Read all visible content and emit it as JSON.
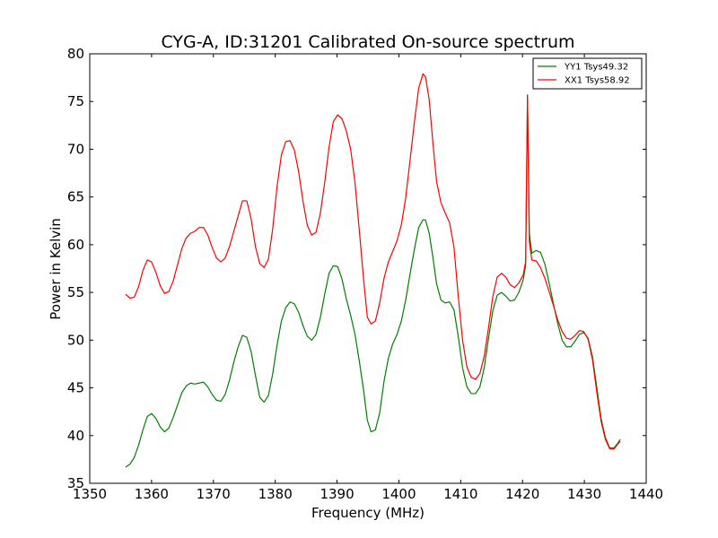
{
  "chart_data": {
    "type": "line",
    "title": "CYG-A, ID:31201 Calibrated On-source spectrum",
    "xlabel": "Frequency (MHz)",
    "ylabel": "Power in Kelvin",
    "xlim": [
      1350,
      1440
    ],
    "ylim": [
      35,
      80
    ],
    "xticks": [
      1350,
      1360,
      1370,
      1380,
      1390,
      1400,
      1410,
      1420,
      1430,
      1440
    ],
    "yticks": [
      35,
      40,
      45,
      50,
      55,
      60,
      65,
      70,
      75,
      80
    ],
    "grid": false,
    "legend_position": "top-right",
    "series": [
      {
        "name": "YY1 Tsys49.32",
        "color": "#008000",
        "points": [
          [
            1355.8,
            36.7
          ],
          [
            1356.5,
            37.0
          ],
          [
            1357.2,
            37.7
          ],
          [
            1357.9,
            39.0
          ],
          [
            1358.6,
            40.6
          ],
          [
            1359.3,
            42.0
          ],
          [
            1360.0,
            42.3
          ],
          [
            1360.7,
            41.8
          ],
          [
            1361.4,
            40.9
          ],
          [
            1362.1,
            40.4
          ],
          [
            1362.8,
            40.8
          ],
          [
            1363.5,
            41.9
          ],
          [
            1364.2,
            43.2
          ],
          [
            1364.9,
            44.5
          ],
          [
            1365.6,
            45.2
          ],
          [
            1366.3,
            45.5
          ],
          [
            1367.0,
            45.4
          ],
          [
            1367.7,
            45.5
          ],
          [
            1368.4,
            45.6
          ],
          [
            1369.1,
            45.1
          ],
          [
            1369.8,
            44.3
          ],
          [
            1370.5,
            43.7
          ],
          [
            1371.2,
            43.6
          ],
          [
            1371.9,
            44.3
          ],
          [
            1372.6,
            45.8
          ],
          [
            1373.3,
            47.7
          ],
          [
            1374.0,
            49.3
          ],
          [
            1374.7,
            50.5
          ],
          [
            1375.4,
            50.3
          ],
          [
            1376.1,
            48.8
          ],
          [
            1376.8,
            46.3
          ],
          [
            1377.5,
            44.0
          ],
          [
            1378.2,
            43.5
          ],
          [
            1378.9,
            44.2
          ],
          [
            1379.6,
            46.5
          ],
          [
            1380.3,
            49.5
          ],
          [
            1381.0,
            52.0
          ],
          [
            1381.7,
            53.4
          ],
          [
            1382.4,
            54.0
          ],
          [
            1383.1,
            53.8
          ],
          [
            1383.8,
            52.9
          ],
          [
            1384.5,
            51.5
          ],
          [
            1385.2,
            50.4
          ],
          [
            1385.9,
            50.0
          ],
          [
            1386.6,
            50.6
          ],
          [
            1387.3,
            52.4
          ],
          [
            1388.0,
            54.8
          ],
          [
            1388.7,
            57.0
          ],
          [
            1389.4,
            57.8
          ],
          [
            1390.1,
            57.7
          ],
          [
            1390.8,
            56.4
          ],
          [
            1391.5,
            54.3
          ],
          [
            1392.2,
            52.6
          ],
          [
            1392.9,
            50.6
          ],
          [
            1393.6,
            47.8
          ],
          [
            1394.3,
            44.7
          ],
          [
            1394.9,
            41.6
          ],
          [
            1395.5,
            40.4
          ],
          [
            1396.2,
            40.6
          ],
          [
            1396.9,
            42.4
          ],
          [
            1397.6,
            45.7
          ],
          [
            1398.3,
            48.1
          ],
          [
            1399.0,
            49.6
          ],
          [
            1399.7,
            50.6
          ],
          [
            1400.4,
            52.0
          ],
          [
            1401.1,
            54.2
          ],
          [
            1401.8,
            56.9
          ],
          [
            1402.5,
            59.5
          ],
          [
            1403.2,
            61.8
          ],
          [
            1403.9,
            62.6
          ],
          [
            1404.3,
            62.6
          ],
          [
            1404.9,
            61.2
          ],
          [
            1405.5,
            58.7
          ],
          [
            1406.1,
            55.9
          ],
          [
            1406.8,
            54.2
          ],
          [
            1407.5,
            53.9
          ],
          [
            1408.2,
            54.0
          ],
          [
            1408.9,
            53.2
          ],
          [
            1409.6,
            50.4
          ],
          [
            1410.3,
            47.1
          ],
          [
            1411.0,
            45.1
          ],
          [
            1411.7,
            44.4
          ],
          [
            1412.4,
            44.4
          ],
          [
            1413.1,
            45.1
          ],
          [
            1413.8,
            47.1
          ],
          [
            1414.5,
            50.2
          ],
          [
            1415.2,
            53.1
          ],
          [
            1415.9,
            54.7
          ],
          [
            1416.6,
            55.0
          ],
          [
            1417.3,
            54.6
          ],
          [
            1418.0,
            54.1
          ],
          [
            1418.7,
            54.2
          ],
          [
            1419.4,
            55.0
          ],
          [
            1420.1,
            56.3
          ],
          [
            1420.5,
            57.8
          ],
          [
            1420.8,
            75.7
          ],
          [
            1421.1,
            61.2
          ],
          [
            1421.5,
            59.1
          ],
          [
            1422.2,
            59.4
          ],
          [
            1422.9,
            59.2
          ],
          [
            1423.6,
            58.0
          ],
          [
            1424.3,
            56.0
          ],
          [
            1425.0,
            53.8
          ],
          [
            1425.7,
            51.7
          ],
          [
            1426.4,
            50.0
          ],
          [
            1427.1,
            49.3
          ],
          [
            1427.8,
            49.3
          ],
          [
            1428.5,
            49.9
          ],
          [
            1429.2,
            50.6
          ],
          [
            1429.9,
            50.8
          ],
          [
            1430.6,
            50.2
          ],
          [
            1431.3,
            48.3
          ],
          [
            1432.0,
            45.1
          ],
          [
            1432.7,
            41.8
          ],
          [
            1433.4,
            39.8
          ],
          [
            1434.1,
            38.7
          ],
          [
            1434.8,
            38.7
          ],
          [
            1435.4,
            39.2
          ],
          [
            1435.8,
            39.6
          ]
        ]
      },
      {
        "name": "XX1 Tsys58.92",
        "color": "#ff0000",
        "points": [
          [
            1355.8,
            54.8
          ],
          [
            1356.5,
            54.4
          ],
          [
            1357.2,
            54.5
          ],
          [
            1357.9,
            55.6
          ],
          [
            1358.6,
            57.3
          ],
          [
            1359.3,
            58.4
          ],
          [
            1360.0,
            58.2
          ],
          [
            1360.7,
            57.1
          ],
          [
            1361.4,
            55.7
          ],
          [
            1362.1,
            54.9
          ],
          [
            1362.8,
            55.1
          ],
          [
            1363.5,
            56.2
          ],
          [
            1364.2,
            57.9
          ],
          [
            1364.9,
            59.6
          ],
          [
            1365.6,
            60.7
          ],
          [
            1366.3,
            61.2
          ],
          [
            1367.0,
            61.4
          ],
          [
            1367.7,
            61.8
          ],
          [
            1368.4,
            61.8
          ],
          [
            1369.1,
            61.0
          ],
          [
            1369.8,
            59.7
          ],
          [
            1370.5,
            58.6
          ],
          [
            1371.2,
            58.2
          ],
          [
            1371.9,
            58.6
          ],
          [
            1372.6,
            59.8
          ],
          [
            1373.3,
            61.4
          ],
          [
            1374.0,
            63.0
          ],
          [
            1374.7,
            64.6
          ],
          [
            1375.4,
            64.6
          ],
          [
            1376.1,
            62.7
          ],
          [
            1376.8,
            59.8
          ],
          [
            1377.5,
            58.0
          ],
          [
            1378.2,
            57.6
          ],
          [
            1378.9,
            58.5
          ],
          [
            1379.6,
            61.7
          ],
          [
            1380.3,
            66.1
          ],
          [
            1381.0,
            69.4
          ],
          [
            1381.7,
            70.8
          ],
          [
            1382.4,
            70.9
          ],
          [
            1383.1,
            69.9
          ],
          [
            1383.8,
            67.6
          ],
          [
            1384.5,
            64.5
          ],
          [
            1385.2,
            62.0
          ],
          [
            1385.9,
            61.0
          ],
          [
            1386.6,
            61.3
          ],
          [
            1387.3,
            63.3
          ],
          [
            1388.0,
            66.5
          ],
          [
            1388.7,
            70.2
          ],
          [
            1389.4,
            72.9
          ],
          [
            1390.1,
            73.6
          ],
          [
            1390.8,
            73.2
          ],
          [
            1391.5,
            71.9
          ],
          [
            1392.2,
            70.0
          ],
          [
            1392.9,
            66.5
          ],
          [
            1393.6,
            61.5
          ],
          [
            1394.3,
            56.3
          ],
          [
            1394.9,
            52.4
          ],
          [
            1395.5,
            51.7
          ],
          [
            1396.2,
            52.0
          ],
          [
            1396.9,
            53.9
          ],
          [
            1397.6,
            56.5
          ],
          [
            1398.3,
            58.2
          ],
          [
            1399.0,
            59.3
          ],
          [
            1399.7,
            60.4
          ],
          [
            1400.4,
            62.1
          ],
          [
            1401.1,
            64.9
          ],
          [
            1401.8,
            68.8
          ],
          [
            1402.5,
            72.8
          ],
          [
            1403.2,
            76.4
          ],
          [
            1403.9,
            77.9
          ],
          [
            1404.3,
            77.6
          ],
          [
            1404.9,
            75.2
          ],
          [
            1405.5,
            70.7
          ],
          [
            1406.1,
            66.6
          ],
          [
            1406.8,
            64.4
          ],
          [
            1407.5,
            63.3
          ],
          [
            1408.2,
            62.3
          ],
          [
            1408.9,
            59.8
          ],
          [
            1409.6,
            54.6
          ],
          [
            1410.3,
            50.0
          ],
          [
            1411.0,
            47.2
          ],
          [
            1411.7,
            46.1
          ],
          [
            1412.4,
            45.9
          ],
          [
            1413.1,
            46.5
          ],
          [
            1413.8,
            48.3
          ],
          [
            1414.5,
            51.3
          ],
          [
            1415.2,
            54.6
          ],
          [
            1415.9,
            56.6
          ],
          [
            1416.6,
            57.0
          ],
          [
            1417.3,
            56.6
          ],
          [
            1418.0,
            55.8
          ],
          [
            1418.7,
            55.5
          ],
          [
            1419.4,
            56.0
          ],
          [
            1420.1,
            56.8
          ],
          [
            1420.5,
            58.2
          ],
          [
            1420.8,
            75.5
          ],
          [
            1421.1,
            60.3
          ],
          [
            1421.5,
            58.4
          ],
          [
            1422.2,
            58.3
          ],
          [
            1422.9,
            57.6
          ],
          [
            1423.6,
            56.5
          ],
          [
            1424.3,
            55.1
          ],
          [
            1425.0,
            53.6
          ],
          [
            1425.7,
            52.1
          ],
          [
            1426.4,
            50.9
          ],
          [
            1427.1,
            50.2
          ],
          [
            1427.8,
            50.1
          ],
          [
            1428.5,
            50.5
          ],
          [
            1429.2,
            51.0
          ],
          [
            1429.9,
            50.9
          ],
          [
            1430.6,
            50.1
          ],
          [
            1431.3,
            48.0
          ],
          [
            1432.0,
            44.6
          ],
          [
            1432.7,
            41.5
          ],
          [
            1433.4,
            39.6
          ],
          [
            1434.1,
            38.6
          ],
          [
            1434.8,
            38.6
          ],
          [
            1435.4,
            39.1
          ],
          [
            1435.8,
            39.4
          ]
        ]
      }
    ]
  }
}
